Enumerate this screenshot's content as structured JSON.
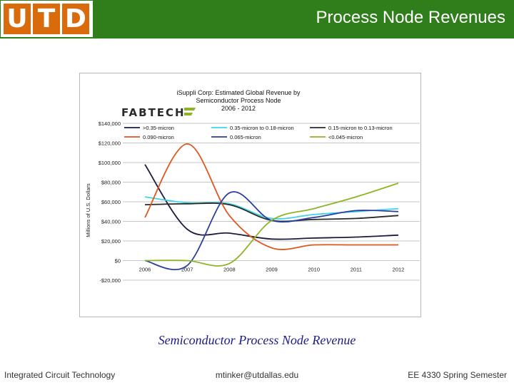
{
  "header": {
    "logo_letters": [
      "U",
      "T",
      "D"
    ],
    "title": "Process Node Revenues"
  },
  "chart_data": {
    "type": "line",
    "title": "iSuppli Corp: Estimated Global Revenue by Semiconductor Process Node",
    "title_lines": [
      "iSuppli Corp: Estimated Global Revenue by",
      "Semiconductor Process Node",
      "2006 - 2012"
    ],
    "subtitle": "2006 - 2012",
    "brand": "FABTECH",
    "ylabel": "Millions of U.S. Dollars",
    "xlabel": "",
    "x": [
      "2006",
      "2007",
      "2008",
      "2009",
      "2010",
      "2011",
      "2012"
    ],
    "ylim": [
      -20000,
      140000
    ],
    "yticks": [
      140000,
      120000,
      100000,
      80000,
      60000,
      40000,
      20000,
      0,
      -20000
    ],
    "ytick_labels": [
      "$140,000",
      "$120,000",
      "$100,000",
      "$80,000",
      "$60,000",
      "$40,000",
      "$20,000",
      "$0",
      "-$20,000"
    ],
    "grid": true,
    "legend_position": "top",
    "series": [
      {
        "name": ">0.35-micron",
        "color": "#1c1c3c",
        "values": [
          98000,
          32000,
          28000,
          22000,
          23000,
          24000,
          26000
        ]
      },
      {
        "name": "0.35-micron to 0.18-micron",
        "color": "#3fd4e8",
        "values": [
          65000,
          59000,
          58000,
          43000,
          47000,
          50000,
          53000
        ]
      },
      {
        "name": "0.15-micron to 0.13-micron",
        "color": "#2a2a2a",
        "values": [
          57000,
          58000,
          57000,
          41000,
          42000,
          43000,
          46000
        ]
      },
      {
        "name": "0.090-micron",
        "color": "#e0561d",
        "values": [
          44000,
          119000,
          46000,
          13000,
          16000,
          16000,
          16000
        ]
      },
      {
        "name": "0.065-micron",
        "color": "#2a3fa0",
        "values": [
          0,
          -5000,
          69000,
          41000,
          44000,
          51000,
          50000
        ]
      },
      {
        "name": "<0.045-micron",
        "color": "#8db523",
        "values": [
          0,
          0,
          -3000,
          41000,
          53000,
          65000,
          79000
        ]
      }
    ]
  },
  "caption": "Semiconductor Process Node Revenue",
  "footer": {
    "left": "Integrated Circuit Technology",
    "center": "mtinker@utdallas.edu",
    "right": "EE 4330 Spring Semester"
  }
}
